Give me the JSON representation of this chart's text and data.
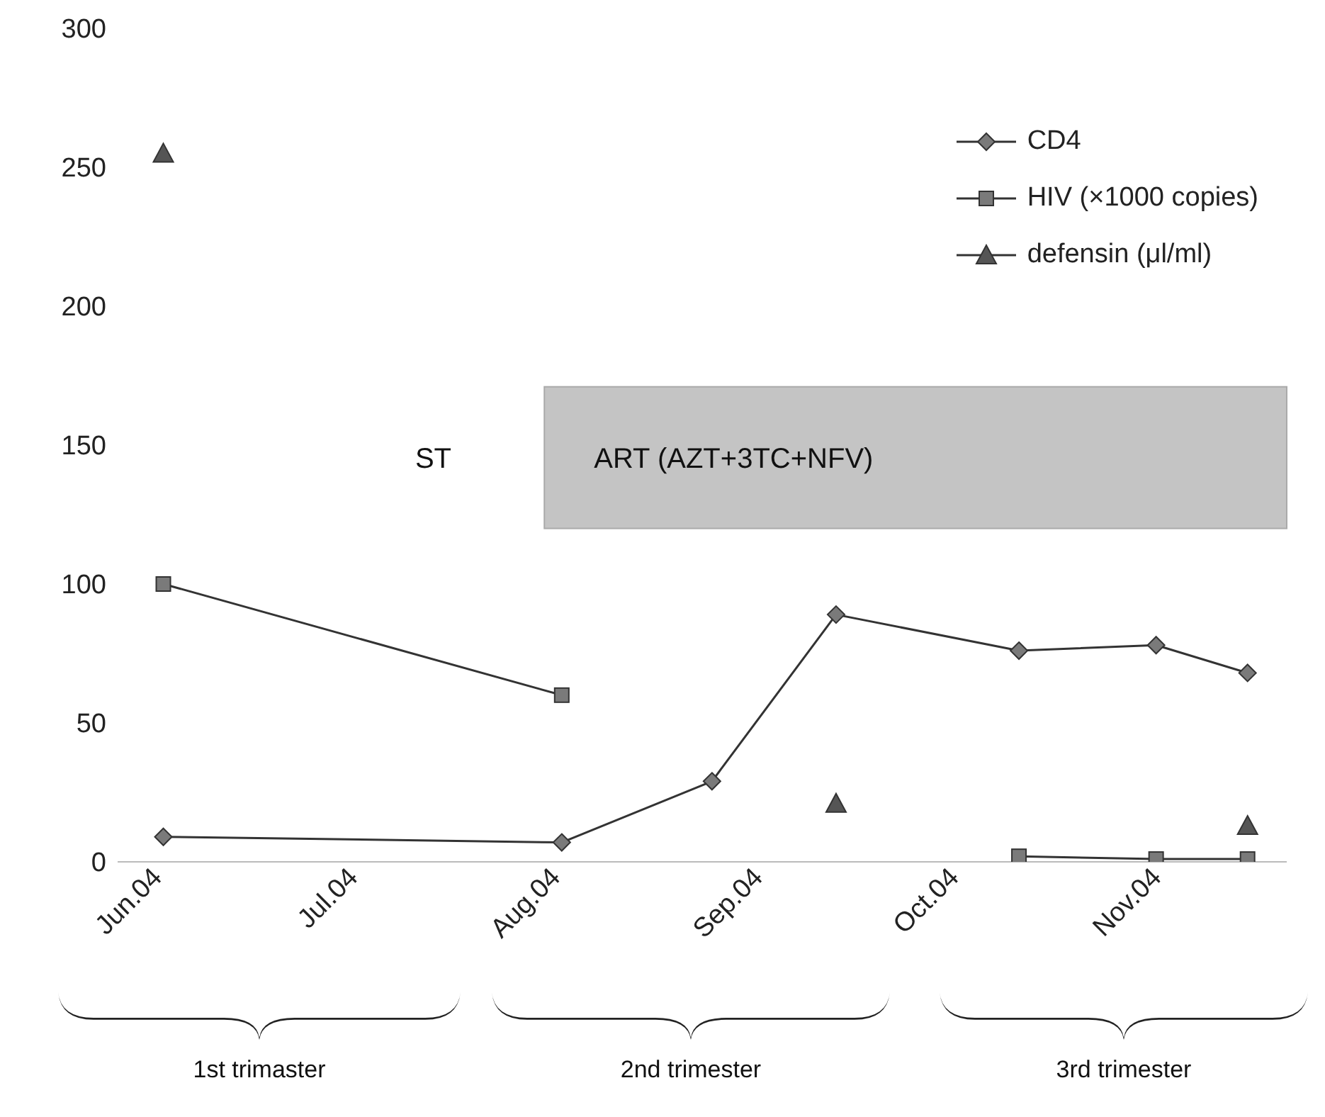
{
  "chart_data": {
    "type": "line",
    "x": [
      "2004-06-01",
      "2004-08-01",
      "2004-08-24",
      "2004-09-12",
      "2004-10-10",
      "2004-10-31",
      "2004-11-14"
    ],
    "series": [
      {
        "name": "CD4",
        "color": "#333333",
        "marker": "diamond",
        "values": [
          9,
          7,
          29,
          89,
          76,
          78,
          68
        ]
      },
      {
        "name": "HIV (×1000 copies)",
        "color": "#333333",
        "marker": "square",
        "values": [
          100,
          60,
          null,
          null,
          2,
          1,
          1
        ]
      },
      {
        "name": "defensin (μl/ml)",
        "color": "#333333",
        "marker": "triangle",
        "values": [
          255,
          null,
          null,
          21,
          null,
          null,
          13
        ]
      }
    ],
    "xlim": [
      "2004-05-25",
      "2004-11-20"
    ],
    "xticks": [
      {
        "value": "2004-06-01",
        "label": "Jun.04"
      },
      {
        "value": "2004-07-01",
        "label": "Jul.04"
      },
      {
        "value": "2004-08-01",
        "label": "Aug.04"
      },
      {
        "value": "2004-09-01",
        "label": "Sep.04"
      },
      {
        "value": "2004-10-01",
        "label": "Oct.04"
      },
      {
        "value": "2004-11-01",
        "label": "Nov.04"
      }
    ],
    "ylim": [
      0,
      300
    ],
    "yticks": [
      0,
      50,
      100,
      150,
      200,
      250,
      300
    ],
    "annotations": [
      "ST",
      "1st trimaster",
      "2nd trimester",
      "3rd trimester",
      "ART (AZT+3TC+NFV)"
    ],
    "grid": false,
    "legend": "top right"
  }
}
